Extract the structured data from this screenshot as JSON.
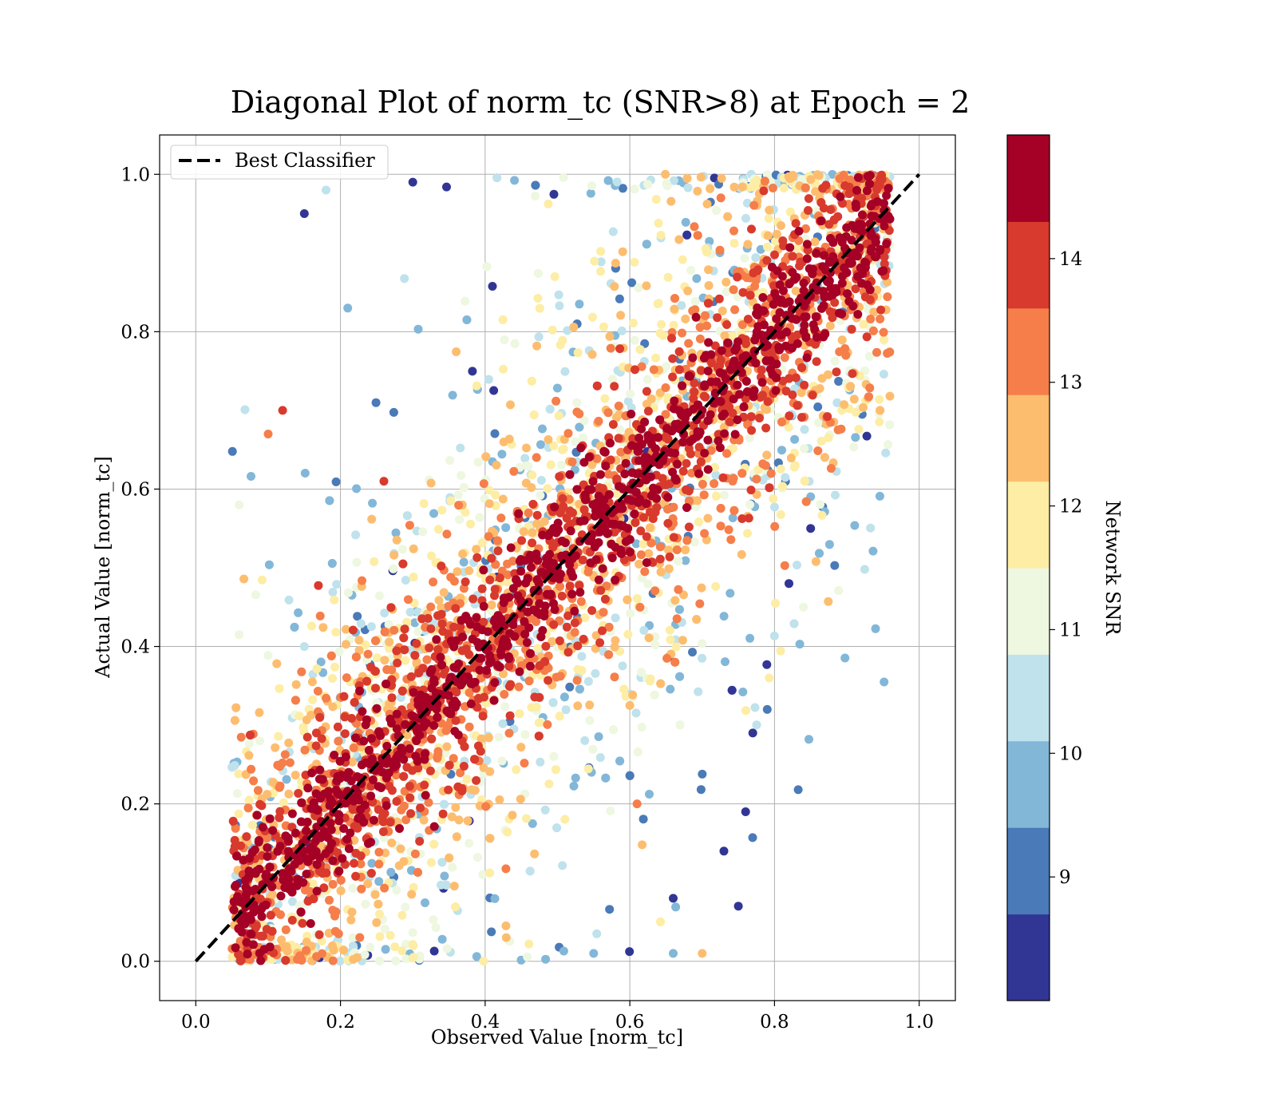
{
  "chart_data": {
    "type": "scatter",
    "title": "Diagonal Plot of norm_tc (SNR>8) at Epoch = 2",
    "xlabel": "Observed Value [norm_tc]",
    "ylabel": "Actual Value [norm_tc]",
    "xlim": [
      -0.05,
      1.05
    ],
    "ylim": [
      -0.05,
      1.05
    ],
    "x_ticks": [
      "0.0",
      "0.2",
      "0.4",
      "0.6",
      "0.8",
      "1.0"
    ],
    "y_ticks": [
      "0.0",
      "0.2",
      "0.4",
      "0.6",
      "0.8",
      "1.0"
    ],
    "grid": true,
    "legend": {
      "position": "upper-left",
      "entries": [
        "Best Classifier"
      ]
    },
    "reference_line": {
      "name": "Best Classifier",
      "x": [
        0.0,
        1.0
      ],
      "y": [
        0.0,
        1.0
      ],
      "style": "dashed",
      "color": "#000000"
    },
    "colorbar": {
      "label": "Network SNR",
      "min": 8.0,
      "max": 15.0,
      "ticks": [
        "9",
        "10",
        "11",
        "12",
        "13",
        "14"
      ],
      "bins": [
        {
          "from": 8.0,
          "to": 8.7,
          "color": "#313695"
        },
        {
          "from": 8.7,
          "to": 9.4,
          "color": "#4a7ab7"
        },
        {
          "from": 9.4,
          "to": 10.1,
          "color": "#82b7d8"
        },
        {
          "from": 10.1,
          "to": 10.8,
          "color": "#bfe2ec"
        },
        {
          "from": 10.8,
          "to": 11.5,
          "color": "#eef7df"
        },
        {
          "from": 11.5,
          "to": 12.2,
          "color": "#fdeda5"
        },
        {
          "from": 12.2,
          "to": 12.9,
          "color": "#fdbd6f"
        },
        {
          "from": 12.9,
          "to": 13.6,
          "color": "#f57e4a"
        },
        {
          "from": 13.6,
          "to": 14.3,
          "color": "#d83a2d"
        },
        {
          "from": 14.3,
          "to": 15.0,
          "color": "#a50026"
        }
      ]
    },
    "scatter_summary": {
      "description": "Dense point cloud along the diagonal; high-SNR points concentrate near y = x, low-SNR points spread farther away.",
      "x_range": [
        0.05,
        0.96
      ],
      "y_range": [
        0.0,
        1.0
      ]
    },
    "sample_points": [
      {
        "x": 0.1,
        "y": 0.1,
        "snr": 14.8
      },
      {
        "x": 0.2,
        "y": 0.2,
        "snr": 14.7
      },
      {
        "x": 0.3,
        "y": 0.3,
        "snr": 14.9
      },
      {
        "x": 0.4,
        "y": 0.4,
        "snr": 14.6
      },
      {
        "x": 0.5,
        "y": 0.5,
        "snr": 14.8
      },
      {
        "x": 0.6,
        "y": 0.6,
        "snr": 14.9
      },
      {
        "x": 0.7,
        "y": 0.7,
        "snr": 14.7
      },
      {
        "x": 0.8,
        "y": 0.8,
        "snr": 14.8
      },
      {
        "x": 0.9,
        "y": 0.9,
        "snr": 14.9
      },
      {
        "x": 0.15,
        "y": 0.95,
        "snr": 8.3
      },
      {
        "x": 0.18,
        "y": 0.98,
        "snr": 10.5
      },
      {
        "x": 0.21,
        "y": 0.83,
        "snr": 9.8
      },
      {
        "x": 0.1,
        "y": 0.67,
        "snr": 13.2
      },
      {
        "x": 0.12,
        "y": 0.7,
        "snr": 13.9
      },
      {
        "x": 0.06,
        "y": 0.58,
        "snr": 11.2
      },
      {
        "x": 0.66,
        "y": 0.01,
        "snr": 9.6
      },
      {
        "x": 0.7,
        "y": 0.01,
        "snr": 12.6
      },
      {
        "x": 0.79,
        "y": 0.32,
        "snr": 9.2
      },
      {
        "x": 0.76,
        "y": 0.19,
        "snr": 8.2
      },
      {
        "x": 0.73,
        "y": 0.14,
        "snr": 8.3
      },
      {
        "x": 0.84,
        "y": 0.45,
        "snr": 11.4
      },
      {
        "x": 0.85,
        "y": 0.55,
        "snr": 8.5
      },
      {
        "x": 0.82,
        "y": 0.48,
        "snr": 8.2
      },
      {
        "x": 0.77,
        "y": 0.29,
        "snr": 8.5
      },
      {
        "x": 0.61,
        "y": 0.2,
        "snr": 13.5
      },
      {
        "x": 0.66,
        "y": 0.08,
        "snr": 8.4
      },
      {
        "x": 0.75,
        "y": 0.07,
        "snr": 8.6
      },
      {
        "x": 0.55,
        "y": 0.01,
        "snr": 9.9
      },
      {
        "x": 0.3,
        "y": 0.99,
        "snr": 8.4
      },
      {
        "x": 0.26,
        "y": 0.61,
        "snr": 13.9
      }
    ]
  }
}
